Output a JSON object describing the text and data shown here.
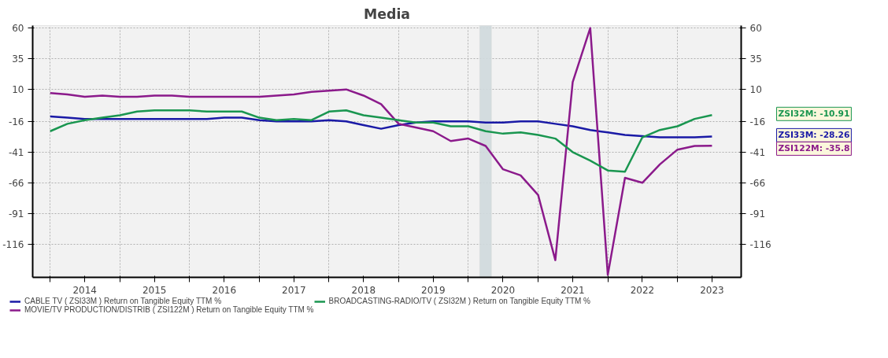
{
  "chart_data": {
    "type": "line",
    "title": "Media",
    "x": [
      "2014-01",
      "2014-04",
      "2014-07",
      "2014-10",
      "2015-01",
      "2015-04",
      "2015-07",
      "2015-10",
      "2016-01",
      "2016-04",
      "2016-07",
      "2016-10",
      "2017-01",
      "2017-04",
      "2017-07",
      "2017-10",
      "2018-01",
      "2018-04",
      "2018-07",
      "2018-10",
      "2019-01",
      "2019-04",
      "2019-07",
      "2019-10",
      "2020-01",
      "2020-04",
      "2020-07",
      "2020-10",
      "2021-01",
      "2021-04",
      "2021-07",
      "2021-10",
      "2022-01",
      "2022-04",
      "2022-07",
      "2022-10",
      "2023-01",
      "2023-04",
      "2023-07"
    ],
    "series": [
      {
        "name": "CABLE TV ( ZSI33M ) Return on Tangible Equity TTM %",
        "color": "#1a1aa6",
        "values": [
          -12,
          -13,
          -14,
          -14,
          -14,
          -14,
          -14,
          -14,
          -14,
          -14,
          -13,
          -13,
          -15,
          -16,
          -16,
          -16,
          -15,
          -16,
          -19,
          -22,
          -19,
          -17,
          -16,
          -16,
          -16,
          -17,
          -17,
          -16,
          -16,
          -18,
          -20,
          -23,
          -25,
          -27,
          -28,
          -29,
          -29,
          -29,
          -28.26
        ]
      },
      {
        "name": "MOVIE/TV PRODUCTION/DISTRIB ( ZSI122M ) Return on Tangible Equity TTM %",
        "color": "#8b1a8b",
        "values": [
          7,
          6,
          4,
          5,
          4,
          4,
          5,
          5,
          4,
          4,
          4,
          4,
          4,
          5,
          6,
          8,
          9,
          10,
          5,
          -2,
          -18,
          -21,
          -24,
          -32,
          -30,
          -36,
          -55,
          -60,
          -76,
          -129,
          16,
          60,
          -141,
          -62,
          -66,
          -51,
          -39,
          -36,
          -35.8
        ]
      },
      {
        "name": "BROADCASTING-RADIO/TV ( ZSI32M ) Return on Tangible Equity TTM %",
        "color": "#1a9650",
        "values": [
          -24,
          -18,
          -15,
          -13,
          -11,
          -8,
          -7,
          -7,
          -7,
          -8,
          -8,
          -8,
          -13,
          -15,
          -14,
          -15,
          -8,
          -7,
          -11,
          -13,
          -15,
          -17,
          -17,
          -20,
          -20,
          -24,
          -26,
          -25,
          -27,
          -30,
          -41,
          -48,
          -56,
          -57,
          -29,
          -23,
          -20,
          -14,
          -10.91
        ]
      }
    ],
    "annotations": [
      "ZSI33M: -28.26",
      "ZSI122M: -35.8",
      "ZSI32M: -10.91"
    ],
    "bands": [
      {
        "axis": "x",
        "from": "2020-03",
        "to": "2020-05",
        "color": "#cfd9dd"
      }
    ],
    "xlim": [
      "2013-10",
      "2023-12"
    ],
    "xticks": [
      {
        "value": "2014-01",
        "label": null
      },
      {
        "value": "2014-07",
        "label": "2014"
      },
      {
        "value": "2015-01",
        "label": null
      },
      {
        "value": "2015-07",
        "label": "2015"
      },
      {
        "value": "2016-01",
        "label": null
      },
      {
        "value": "2016-07",
        "label": "2016"
      },
      {
        "value": "2017-01",
        "label": null
      },
      {
        "value": "2017-07",
        "label": "2017"
      },
      {
        "value": "2018-01",
        "label": null
      },
      {
        "value": "2018-07",
        "label": "2018"
      },
      {
        "value": "2019-01",
        "label": null
      },
      {
        "value": "2019-07",
        "label": "2019"
      },
      {
        "value": "2020-01",
        "label": null
      },
      {
        "value": "2020-07",
        "label": "2020"
      },
      {
        "value": "2021-01",
        "label": null
      },
      {
        "value": "2021-07",
        "label": "2021"
      },
      {
        "value": "2022-01",
        "label": null
      },
      {
        "value": "2022-07",
        "label": "2022"
      },
      {
        "value": "2023-01",
        "label": null
      },
      {
        "value": "2023-07",
        "label": "2023"
      }
    ],
    "ylim": [
      -143,
      62
    ],
    "yticks": [
      60,
      35,
      10,
      -16,
      -41,
      -66,
      -91,
      -116
    ],
    "y2lim": [
      -143,
      62
    ],
    "y2ticks": [
      60,
      35,
      10,
      -16,
      -41,
      -66,
      -91,
      -116
    ],
    "grid": true,
    "legend": "bottom",
    "marker": "none",
    "line_style": "solid"
  }
}
